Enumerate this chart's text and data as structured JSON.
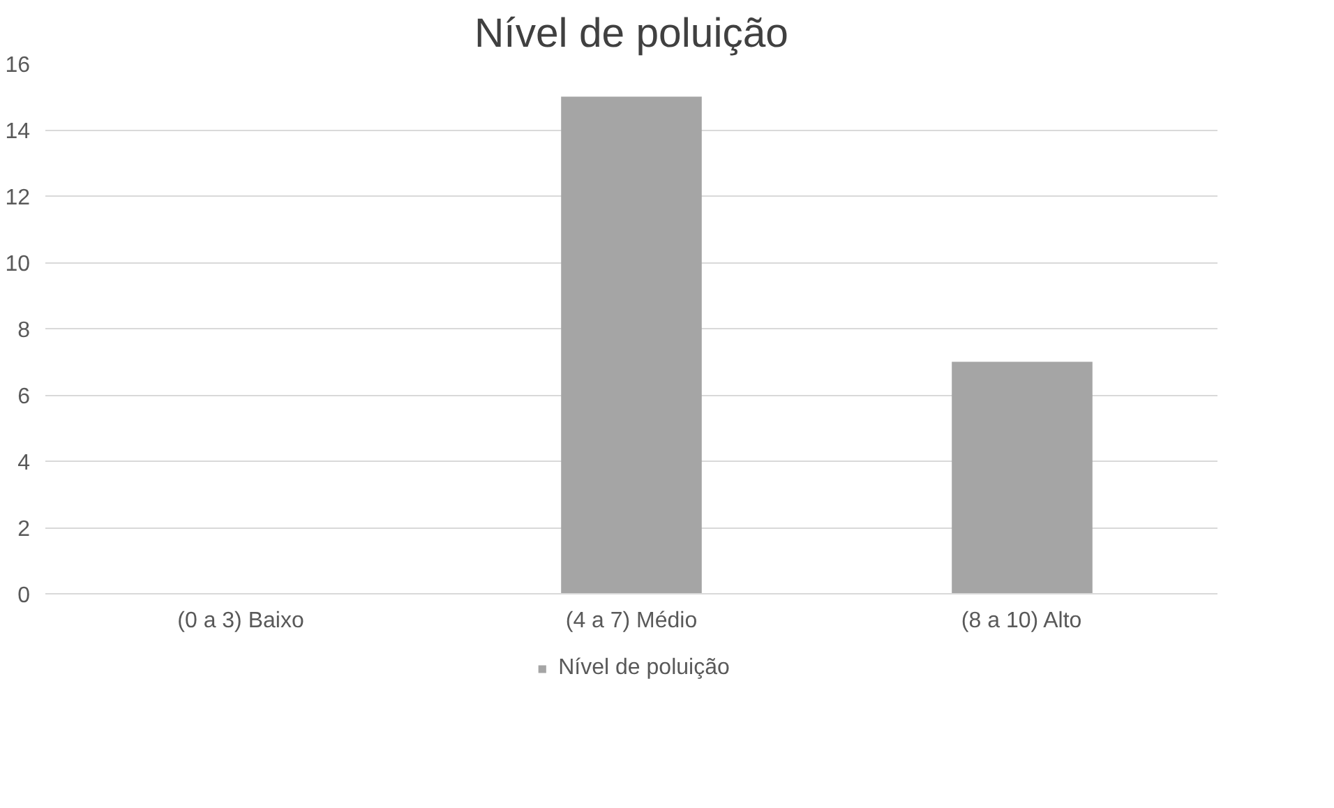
{
  "chart_data": {
    "type": "bar",
    "title": "Nível de poluição",
    "categories": [
      "(0 a 3) Baixo",
      "(4 a 7) Médio",
      "(8 a 10) Alto"
    ],
    "series": [
      {
        "name": "Nível de poluição",
        "color": "#a5a5a5",
        "values": [
          0,
          15,
          7
        ]
      }
    ],
    "ylim": [
      0,
      16
    ],
    "yticks": [
      0,
      2,
      4,
      6,
      8,
      10,
      12,
      14,
      16
    ],
    "grid": "y",
    "legend": "bottom"
  }
}
